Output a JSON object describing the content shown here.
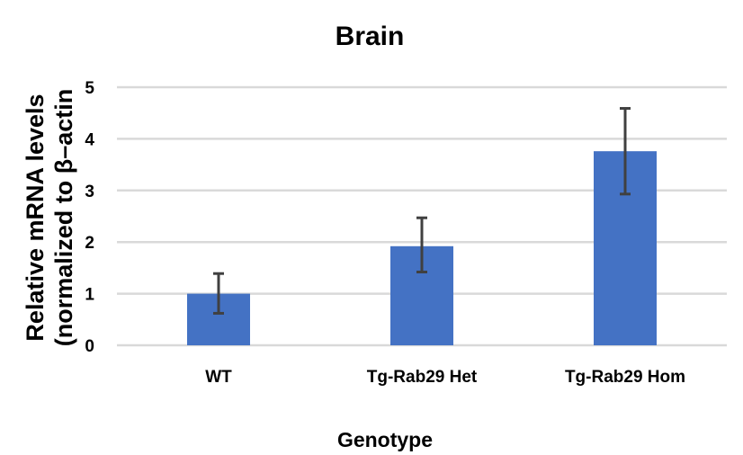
{
  "chart_data": {
    "type": "bar",
    "title": "Brain",
    "xlabel": "Genotype",
    "ylabel_lines": [
      "Relative mRNA levels",
      "(normalized to β–actin"
    ],
    "categories": [
      "WT",
      "Tg-Rab29 Het",
      "Tg-Rab29 Hom"
    ],
    "values": [
      1.0,
      1.92,
      3.76
    ],
    "error_low": [
      0.62,
      1.42,
      2.93
    ],
    "error_high": [
      1.39,
      2.47,
      4.59
    ],
    "ylim": [
      0,
      5
    ],
    "yticks": [
      0,
      1,
      2,
      3,
      4,
      5
    ],
    "grid": true,
    "colors": {
      "bar": "#4472C4",
      "error": "#404040",
      "grid": "#D9D9D9"
    }
  }
}
